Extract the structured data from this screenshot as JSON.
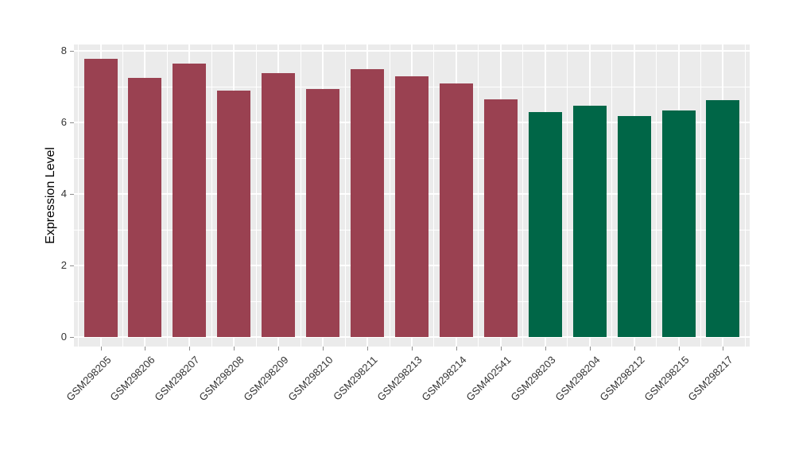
{
  "chart_data": {
    "type": "bar",
    "title": "",
    "xlabel": "",
    "ylabel": "Expression Level",
    "ylim": [
      0,
      8.2
    ],
    "yticks": [
      0,
      2,
      4,
      6,
      8
    ],
    "grid": "major and minor, white on gray panel",
    "legend": "none",
    "categories": [
      "GSM298205",
      "GSM298206",
      "GSM298207",
      "GSM298208",
      "GSM298209",
      "GSM298210",
      "GSM298211",
      "GSM298213",
      "GSM298214",
      "GSM402541",
      "GSM298203",
      "GSM298204",
      "GSM298212",
      "GSM298215",
      "GSM298217"
    ],
    "values": [
      7.78,
      7.25,
      7.64,
      6.89,
      7.37,
      6.93,
      7.49,
      7.3,
      7.1,
      6.64,
      6.3,
      6.47,
      6.18,
      6.33,
      6.62
    ],
    "bar_colors": [
      "#9A4151",
      "#9A4151",
      "#9A4151",
      "#9A4151",
      "#9A4151",
      "#9A4151",
      "#9A4151",
      "#9A4151",
      "#9A4151",
      "#9A4151",
      "#006647",
      "#006647",
      "#006647",
      "#006647",
      "#006647"
    ],
    "group_colors": {
      "maroon_group": "#9A4151",
      "green_group": "#006647"
    }
  },
  "style": {
    "figure_bg": "#FFFFFF",
    "panel_bg": "#EBEBEB",
    "grid_color": "#FFFFFF",
    "tick_color": "#8C8C8C",
    "tick_label_color": "#333333",
    "axis_title_color": "#000000"
  }
}
